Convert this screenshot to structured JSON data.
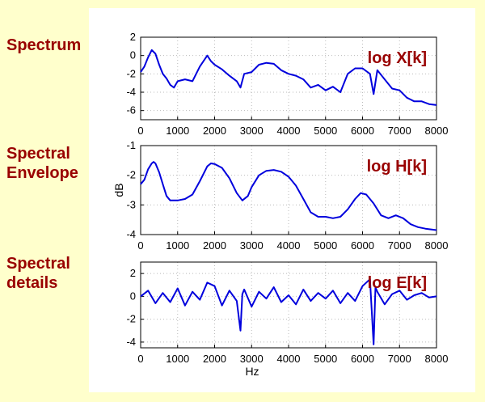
{
  "side_labels": [
    "Spectrum",
    "Spectral\nEnvelope",
    "Spectral\ndetails"
  ],
  "colors": {
    "background": "#ffffcc",
    "panel": "#ffffff",
    "label": "#990000",
    "line": "#0000dd",
    "grid": "#bbbbbb"
  },
  "chart_data": [
    {
      "type": "line",
      "title": "",
      "annotation": "log X[k]",
      "xlabel": "",
      "ylabel": "",
      "xlim": [
        0,
        8000
      ],
      "ylim": [
        -7,
        2
      ],
      "xticks": [
        0,
        1000,
        2000,
        3000,
        4000,
        5000,
        6000,
        7000,
        8000
      ],
      "yticks": [
        2,
        0,
        -2,
        -4,
        -6
      ],
      "grid": true,
      "series": [
        {
          "x": [
            0,
            100,
            200,
            300,
            400,
            500,
            600,
            700,
            800,
            900,
            1000,
            1200,
            1400,
            1600,
            1800,
            1900,
            2000,
            2200,
            2400,
            2600,
            2700,
            2800,
            3000,
            3200,
            3400,
            3600,
            3800,
            4000,
            4200,
            4400,
            4600,
            4800,
            5000,
            5200,
            5400,
            5600,
            5800,
            6000,
            6200,
            6300,
            6400,
            6600,
            6800,
            7000,
            7200,
            7400,
            7600,
            7800,
            8000
          ],
          "y": [
            -1.8,
            -1.2,
            -0.2,
            0.6,
            0.2,
            -1.0,
            -2.0,
            -2.5,
            -3.2,
            -3.5,
            -2.8,
            -2.6,
            -2.8,
            -1.2,
            0.0,
            -0.6,
            -1.0,
            -1.5,
            -2.2,
            -2.8,
            -3.5,
            -2.0,
            -1.8,
            -1.0,
            -0.8,
            -0.9,
            -1.6,
            -2.0,
            -2.2,
            -2.6,
            -3.5,
            -3.2,
            -3.8,
            -3.4,
            -4.0,
            -2.0,
            -1.4,
            -1.4,
            -2.0,
            -4.2,
            -1.6,
            -2.6,
            -3.6,
            -3.8,
            -4.6,
            -5.0,
            -5.0,
            -5.3,
            -5.4
          ]
        }
      ]
    },
    {
      "type": "line",
      "title": "",
      "annotation": "log H[k]",
      "xlabel": "",
      "ylabel": "dB",
      "xlim": [
        0,
        8000
      ],
      "ylim": [
        -4,
        -1
      ],
      "xticks": [
        0,
        1000,
        2000,
        3000,
        4000,
        5000,
        6000,
        7000,
        8000
      ],
      "yticks": [
        -1,
        -2,
        -3,
        -4
      ],
      "grid": true,
      "series": [
        {
          "x": [
            0,
            100,
            200,
            300,
            350,
            400,
            500,
            600,
            700,
            800,
            900,
            1000,
            1200,
            1400,
            1600,
            1800,
            1900,
            2000,
            2200,
            2400,
            2600,
            2750,
            2900,
            3000,
            3200,
            3400,
            3600,
            3800,
            4000,
            4100,
            4200,
            4400,
            4600,
            4800,
            5000,
            5200,
            5400,
            5600,
            5800,
            5950,
            6100,
            6300,
            6500,
            6700,
            6900,
            7100,
            7300,
            7500,
            7700,
            8000
          ],
          "y": [
            -2.3,
            -2.15,
            -1.8,
            -1.6,
            -1.55,
            -1.6,
            -1.9,
            -2.3,
            -2.7,
            -2.85,
            -2.85,
            -2.85,
            -2.8,
            -2.65,
            -2.2,
            -1.7,
            -1.6,
            -1.62,
            -1.75,
            -2.1,
            -2.6,
            -2.85,
            -2.7,
            -2.4,
            -2.0,
            -1.85,
            -1.82,
            -1.88,
            -2.05,
            -2.2,
            -2.35,
            -2.8,
            -3.25,
            -3.4,
            -3.4,
            -3.45,
            -3.4,
            -3.15,
            -2.8,
            -2.6,
            -2.65,
            -2.95,
            -3.35,
            -3.45,
            -3.35,
            -3.45,
            -3.65,
            -3.75,
            -3.8,
            -3.85
          ]
        }
      ]
    },
    {
      "type": "line",
      "title": "",
      "annotation": "log E[k]",
      "xlabel": "Hz",
      "ylabel": "",
      "xlim": [
        0,
        8000
      ],
      "ylim": [
        -4.5,
        3
      ],
      "xticks": [
        0,
        1000,
        2000,
        3000,
        4000,
        5000,
        6000,
        7000,
        8000
      ],
      "yticks": [
        2,
        0,
        -2,
        -4
      ],
      "grid": true,
      "series": [
        {
          "x": [
            0,
            200,
            400,
            600,
            800,
            1000,
            1200,
            1400,
            1600,
            1800,
            2000,
            2200,
            2400,
            2600,
            2700,
            2750,
            2800,
            3000,
            3200,
            3400,
            3600,
            3800,
            4000,
            4200,
            4400,
            4600,
            4800,
            5000,
            5200,
            5400,
            5600,
            5800,
            6000,
            6200,
            6300,
            6350,
            6400,
            6600,
            6800,
            7000,
            7200,
            7400,
            7600,
            7800,
            8000
          ],
          "y": [
            0.0,
            0.5,
            -0.6,
            0.3,
            -0.5,
            0.7,
            -0.8,
            0.4,
            -0.3,
            1.2,
            0.9,
            -0.8,
            0.5,
            -0.4,
            -3.0,
            0.2,
            0.6,
            -0.9,
            0.4,
            -0.2,
            0.8,
            -0.5,
            0.1,
            -0.7,
            0.6,
            -0.4,
            0.3,
            -0.2,
            0.5,
            -0.6,
            0.3,
            -0.4,
            0.9,
            1.5,
            -4.2,
            0.8,
            0.4,
            -0.7,
            0.2,
            0.5,
            -0.3,
            0.1,
            0.3,
            -0.1,
            0.0
          ]
        }
      ]
    }
  ]
}
